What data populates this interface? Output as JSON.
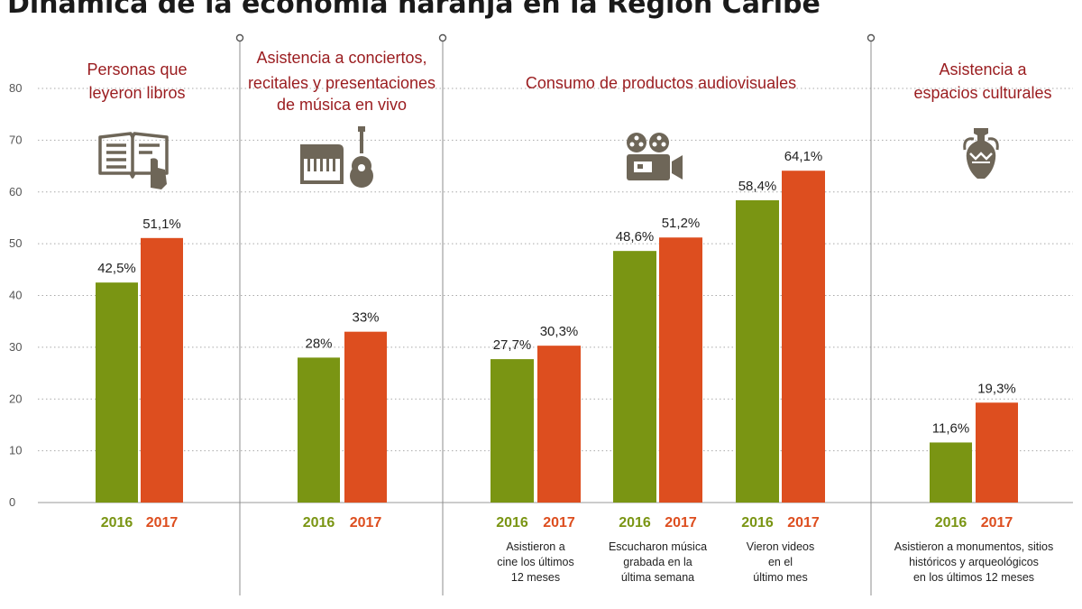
{
  "title": "Dinámica de la economía naranja en la Región Caribe",
  "colors": {
    "y2016": "#7a9513",
    "y2017": "#dd4e1f",
    "heading": "#9a1c1f",
    "icon": "#6e6658"
  },
  "chart_data": {
    "type": "bar",
    "title": "Dinámica de la economía naranja en la Región Caribe",
    "ylim": [
      0,
      80
    ],
    "yticks": [
      "0",
      "10",
      "20",
      "30",
      "40",
      "50",
      "60",
      "70",
      "80"
    ],
    "grid": true,
    "series_names": [
      "2016",
      "2017"
    ],
    "sections": [
      {
        "heading": [
          "Personas que",
          "leyeron libros"
        ],
        "icon": "open-book-icon",
        "groups": [
          {
            "caption": [],
            "values": [
              42.5,
              51.1
            ],
            "labels": [
              "42,5%",
              "51,1%"
            ]
          }
        ]
      },
      {
        "heading": [
          "Asistencia a conciertos,",
          "recitales y presentaciones",
          "de música en vivo"
        ],
        "icon": "piano-guitar-icon",
        "groups": [
          {
            "caption": [],
            "values": [
              28,
              33
            ],
            "labels": [
              "28%",
              "33%"
            ]
          }
        ]
      },
      {
        "heading": [
          "Consumo de productos audiovisuales"
        ],
        "icon": "film-camera-icon",
        "groups": [
          {
            "caption": [
              "Asistieron a",
              "cine los últimos",
              "12 meses"
            ],
            "values": [
              27.7,
              30.3
            ],
            "labels": [
              "27,7%",
              "30,3%"
            ]
          },
          {
            "caption": [
              "Escucharon música",
              "grabada en la",
              "última semana"
            ],
            "values": [
              48.6,
              51.2
            ],
            "labels": [
              "48,6%",
              "51,2%"
            ]
          },
          {
            "caption": [
              "Vieron videos",
              "en el",
              "último mes"
            ],
            "values": [
              58.4,
              64.1
            ],
            "labels": [
              "58,4%",
              "64,1%"
            ]
          }
        ]
      },
      {
        "heading": [
          "Asistencia a",
          "espacios culturales"
        ],
        "icon": "amphora-icon",
        "groups": [
          {
            "caption": [
              "Asistieron a monumentos, sitios",
              "históricos y arqueológicos",
              "en los últimos 12 meses"
            ],
            "values": [
              11.6,
              19.3
            ],
            "labels": [
              "11,6%",
              "19,3%"
            ]
          }
        ]
      }
    ]
  }
}
